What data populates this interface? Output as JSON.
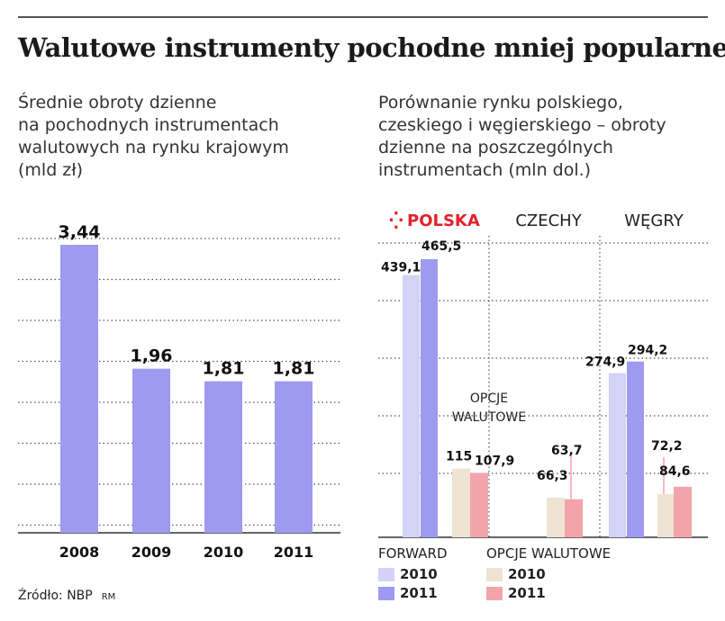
{
  "title": "Walutowe instrumenty pochodne mniej popularne",
  "colors": {
    "bar_left": "#9d9af0",
    "forward_2010": "#d4d2f6",
    "forward_2011": "#9d9af0",
    "opcje_2010": "#efe3d1",
    "opcje_2011": "#f2a4aa",
    "polska_red": "#e2222a"
  },
  "left_subtitle": [
    "Średnie obroty dzienne",
    "na pochodnych instrumentach",
    "walutowych na rynku krajowym",
    "(mld zł)"
  ],
  "right_subtitle": [
    "Porównanie rynku polskiego,",
    "czeskiego i węgierskiego – obroty",
    "dzienne na poszczególnych",
    "instrumentach (mln dol.)"
  ],
  "chart_data": [
    {
      "type": "bar",
      "title": "Średnie obroty dzienne na pochodnych instrumentach walutowych na rynku krajowym (mld zł)",
      "categories": [
        "2008",
        "2009",
        "2010",
        "2011"
      ],
      "values": [
        3.44,
        1.96,
        1.81,
        1.81
      ],
      "value_labels": [
        "3,44",
        "1,96",
        "1,81",
        "1,81"
      ],
      "ylim": [
        0,
        4.2
      ],
      "grid": true
    },
    {
      "type": "bar",
      "title": "Porównanie rynku polskiego, czeskiego i węgierskiego – obroty dzienne na poszczególnych instrumentach (mln dol.)",
      "groups": [
        "POLSKA",
        "CZECHY",
        "WĘGRY"
      ],
      "annotation": [
        "OPCJE",
        "WALUTOWE"
      ],
      "series": [
        {
          "name": "FORWARD 2010",
          "values": [
            439.1,
            null,
            274.9
          ],
          "labels": [
            "439,1",
            null,
            "274,9"
          ]
        },
        {
          "name": "FORWARD 2011",
          "values": [
            465.5,
            null,
            294.2
          ],
          "labels": [
            "465,5",
            null,
            "294,2"
          ]
        },
        {
          "name": "OPCJE WALUTOWE 2010",
          "values": [
            115,
            66.3,
            72.2
          ],
          "labels": [
            "115",
            "66,3",
            "72,2"
          ]
        },
        {
          "name": "OPCJE WALUTOWE 2011",
          "values": [
            107.9,
            63.7,
            84.6
          ],
          "labels": [
            "107,9",
            "63,7",
            "84,6"
          ]
        }
      ],
      "ylim": [
        0,
        520
      ],
      "grid": true
    }
  ],
  "legend": {
    "forward_label": "FORWARD",
    "opcje_label": "OPCJE WALUTOWE",
    "y2010": "2010",
    "y2011": "2011"
  },
  "source": "Źródło: NBP",
  "author": "RM"
}
